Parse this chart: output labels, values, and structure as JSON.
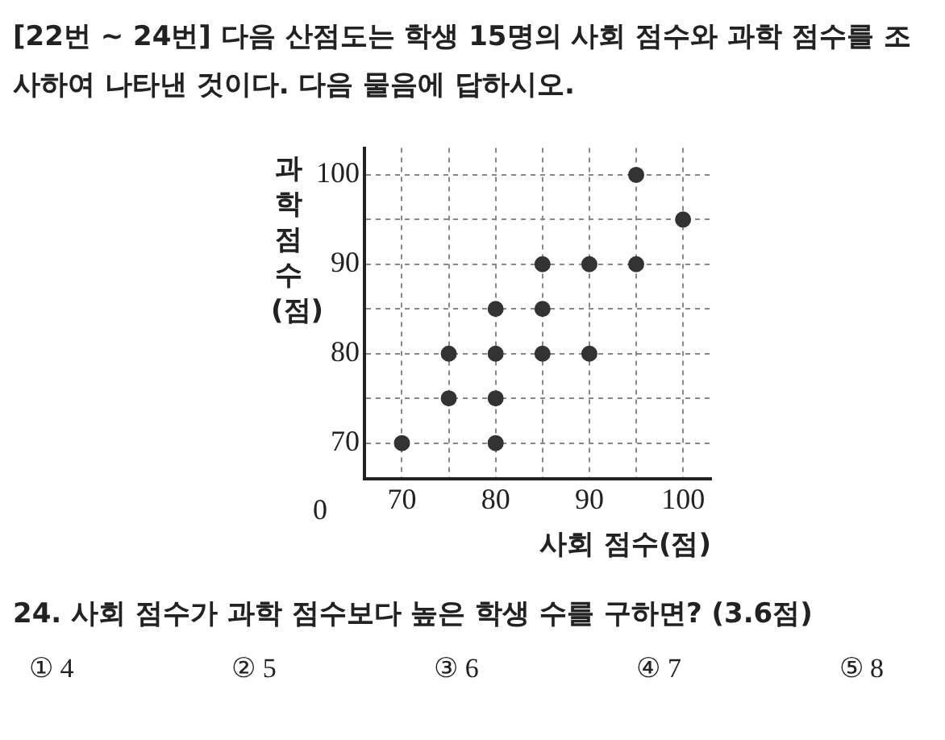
{
  "chart_data": {
    "type": "scatter",
    "title": "[22번 ~ 24번] 다음 산점도는 학생 15명의 사회 점수와 과학 점수를 조사하여 나타낸 것이다. 다음 물음에 답하시오.",
    "xlabel": "사회 점수(점)",
    "ylabel": "과학 점수(점)",
    "x": [
      70,
      75,
      75,
      80,
      80,
      80,
      80,
      85,
      85,
      85,
      90,
      90,
      95,
      95,
      100
    ],
    "series": [
      {
        "color": "#333333",
        "values": [
          70,
          75,
          80,
          70,
          75,
          80,
          85,
          80,
          85,
          90,
          80,
          90,
          90,
          100,
          95
        ]
      }
    ],
    "xlim": [
      66,
      103
    ],
    "ylim": [
      66,
      103
    ],
    "xticks": [
      70,
      {
        "value": 75,
        "label": null
      },
      80,
      {
        "value": 85,
        "label": null
      },
      90,
      {
        "value": 95,
        "label": null
      },
      100
    ],
    "yticks": [
      70,
      {
        "value": 75,
        "label": null
      },
      80,
      {
        "value": 85,
        "label": null
      },
      90,
      {
        "value": 95,
        "label": null
      },
      100
    ],
    "grid": true,
    "marker": "circle",
    "legend": false,
    "annotations": [
      "0",
      "24. 사회 점수가 과학 점수보다 높은 학생 수를 구하면? (3.6점)",
      "① 4",
      "② 5",
      "③ 6",
      "④ 7",
      "⑤ 8"
    ]
  }
}
